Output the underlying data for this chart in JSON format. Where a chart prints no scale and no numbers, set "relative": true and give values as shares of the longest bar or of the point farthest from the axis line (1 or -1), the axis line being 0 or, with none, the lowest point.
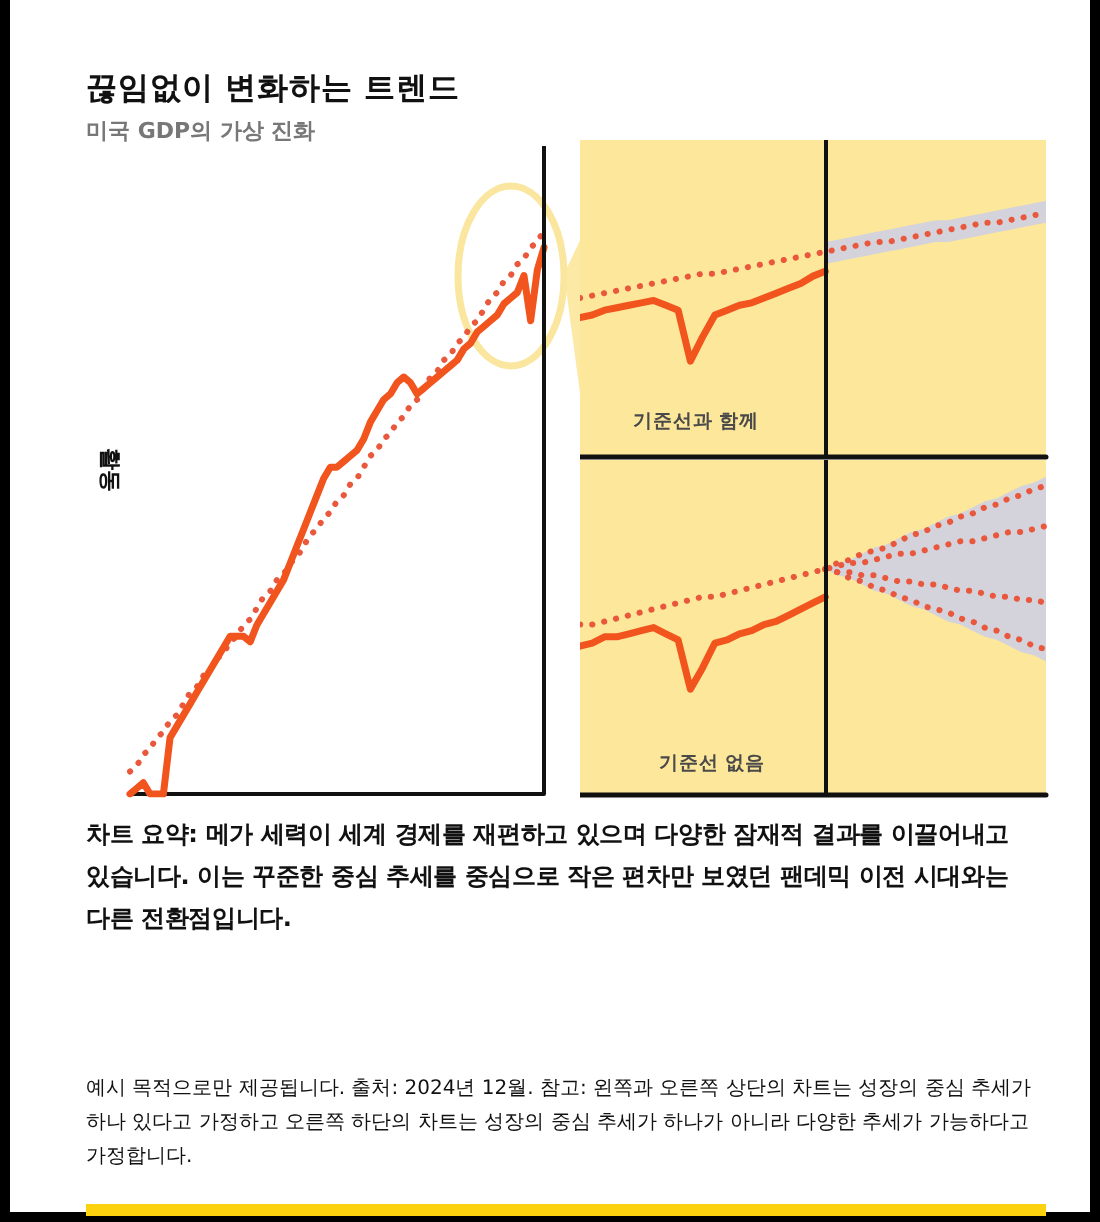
{
  "chart_data": [
    {
      "type": "line",
      "title": "끊임없이 변화하는 트렌드",
      "subtitle": "미국 GDP의 가상 진화",
      "ylabel": "활동",
      "relative": true,
      "annotations": [
        "차트 요약: 메가 세력이 세계 경제를 재편하고 있으며 다양한 잠재적 결과를 이끌어내고 있습니다. 이는 꾸준한 중심 추세를 중심으로 작은 편차만 보였던 팬데믹 이전 시대와는 다른 전환점입니다.",
        "예시 목적으로만 제공됩니다. 출처: 2024년 12월. 참고: 왼쪽과 오른쪽 상단의 차트는 성장의 중심 추세가 하나 있다고 가정하고 오른쪽 하단의 차트는 성장의 중심 추세가 하나가 아니라 다양한 추세가 가능하다고 가정합니다."
      ],
      "categories": [
        null,
        null,
        null,
        null,
        null,
        null,
        null,
        null,
        null,
        null,
        null,
        null,
        null,
        null,
        null,
        null,
        null,
        null,
        null,
        null,
        null,
        null,
        null,
        null,
        null,
        null,
        null,
        null,
        null,
        null,
        null,
        null,
        null,
        null,
        null,
        null,
        null,
        null,
        null,
        null,
        null,
        null,
        null,
        null,
        null,
        null,
        null,
        null,
        null,
        null,
        null,
        null,
        null,
        null,
        null,
        null,
        null,
        null,
        null,
        null,
        null,
        null,
        null
      ],
      "series": [
        {
          "color": "#f2541d",
          "line_style": "solid",
          "values": [
            0,
            0.01,
            0.02,
            0,
            0,
            0,
            0.1,
            0.12,
            0.14,
            0.16,
            0.18,
            0.2,
            0.22,
            0.24,
            0.26,
            0.28,
            0.28,
            0.28,
            0.27,
            0.3,
            0.32,
            0.34,
            0.36,
            0.38,
            0.41,
            0.44,
            0.47,
            0.5,
            0.53,
            0.56,
            0.58,
            0.58,
            0.59,
            0.6,
            0.61,
            0.63,
            0.66,
            0.68,
            0.7,
            0.71,
            0.73,
            0.74,
            0.73,
            0.71,
            0.72,
            0.73,
            0.74,
            0.75,
            0.76,
            0.77,
            0.79,
            0.8,
            0.82,
            0.83,
            0.84,
            0.85,
            0.87,
            0.88,
            0.89,
            0.92,
            0.84,
            0.93,
            0.97
          ]
        },
        {
          "color": "#e9573c",
          "line_style": "dotted",
          "values": [
            0.04,
            0.05,
            0.07,
            0.08,
            0.1,
            0.11,
            0.13,
            0.14,
            0.16,
            0.18,
            0.19,
            0.21,
            0.22,
            0.24,
            0.25,
            0.27,
            0.28,
            0.3,
            0.31,
            0.33,
            0.35,
            0.36,
            0.38,
            0.39,
            0.41,
            0.42,
            0.44,
            0.46,
            0.47,
            0.49,
            0.5,
            0.52,
            0.53,
            0.55,
            0.56,
            0.58,
            0.6,
            0.61,
            0.63,
            0.64,
            0.66,
            0.67,
            0.69,
            0.7,
            0.72,
            0.74,
            0.75,
            0.77,
            0.78,
            0.8,
            0.81,
            0.83,
            0.84,
            0.86,
            0.88,
            0.89,
            0.91,
            0.92,
            0.94,
            0.95,
            0.97,
            0.98,
            1
          ]
        }
      ]
    },
    {
      "type": "line",
      "relative": true,
      "annotations": [
        "기준선과 함께"
      ],
      "categories": [
        null,
        null,
        null,
        null,
        null,
        null,
        null,
        null,
        null,
        null,
        null,
        null,
        null,
        null,
        null,
        null,
        null,
        null,
        null,
        null,
        null,
        null,
        null,
        null,
        null,
        null,
        null,
        null,
        null,
        null,
        null,
        null,
        null,
        null,
        null,
        null,
        null,
        null,
        null
      ],
      "series": [
        {
          "color": "#f2541d",
          "line_style": "solid",
          "values": [
            0.57,
            0.58,
            0.6,
            0.61,
            0.62,
            0.63,
            0.64,
            0.62,
            0.6,
            0.39,
            0.49,
            0.58,
            0.6,
            0.62,
            0.63,
            0.65,
            0.67,
            0.69,
            0.71,
            0.74,
            0.76,
            null,
            null,
            null,
            null,
            null,
            null,
            null,
            null,
            null,
            null,
            null,
            null,
            null,
            null,
            null,
            null,
            null,
            null
          ]
        },
        {
          "color": "#e9573c",
          "line_style": "dotted",
          "values": [
            0.65,
            0.66,
            0.67,
            0.68,
            0.69,
            0.7,
            0.71,
            0.72,
            0.73,
            0.74,
            0.75,
            0.75,
            0.76,
            0.77,
            0.78,
            0.79,
            0.8,
            0.81,
            0.82,
            0.83,
            0.84,
            0.85,
            0.86,
            0.87,
            0.88,
            0.88,
            0.89,
            0.9,
            0.91,
            0.92,
            0.93,
            0.94,
            0.95,
            0.96,
            0.96,
            0.97,
            0.98,
            0.99,
            1
          ],
          "lower": [
            null,
            null,
            null,
            null,
            null,
            null,
            null,
            null,
            null,
            null,
            null,
            null,
            null,
            null,
            null,
            null,
            null,
            null,
            null,
            null,
            0.79,
            0.8,
            0.81,
            0.82,
            0.83,
            0.84,
            0.85,
            0.86,
            0.87,
            0.88,
            0.88,
            0.89,
            0.9,
            0.91,
            0.92,
            0.93,
            0.94,
            0.95,
            0.96
          ],
          "upper": [
            null,
            null,
            null,
            null,
            null,
            null,
            null,
            null,
            null,
            null,
            null,
            null,
            null,
            null,
            null,
            null,
            null,
            null,
            null,
            null,
            0.88,
            0.89,
            0.9,
            0.91,
            0.92,
            0.93,
            0.94,
            0.95,
            0.96,
            0.97,
            0.97,
            0.98,
            0.99,
            1,
            1.01,
            1.02,
            1.03,
            1.04,
            1.05
          ]
        }
      ]
    },
    {
      "type": "line",
      "relative": true,
      "annotations": [
        "기준선 없음"
      ],
      "categories": [
        null,
        null,
        null,
        null,
        null,
        null,
        null,
        null,
        null,
        null,
        null,
        null,
        null,
        null,
        null,
        null,
        null,
        null,
        null,
        null,
        null,
        null,
        null,
        null,
        null,
        null,
        null,
        null,
        null,
        null,
        null,
        null,
        null,
        null,
        null,
        null,
        null,
        null,
        null
      ],
      "series": [
        {
          "color": "#f2541d",
          "line_style": "solid",
          "values": [
            0.48,
            0.49,
            0.51,
            0.51,
            0.52,
            0.53,
            0.54,
            0.52,
            0.5,
            0.34,
            0.41,
            0.49,
            0.5,
            0.52,
            0.53,
            0.55,
            0.56,
            0.58,
            0.6,
            0.62,
            0.64,
            null,
            null,
            null,
            null,
            null,
            null,
            null,
            null,
            null,
            null,
            null,
            null,
            null,
            null,
            null,
            null,
            null,
            null
          ]
        },
        {
          "color": "#e9573c",
          "line_style": "dotted",
          "values": [
            0.55,
            0.55,
            0.56,
            0.57,
            0.58,
            0.59,
            0.6,
            0.61,
            0.62,
            0.63,
            0.64,
            0.64,
            0.65,
            0.66,
            0.67,
            0.68,
            0.69,
            0.7,
            0.71,
            0.72,
            0.73,
            0.74,
            0.75,
            0.75,
            0.76,
            0.77,
            0.78,
            0.78,
            0.79,
            0.8,
            0.81,
            0.82,
            0.82,
            0.83,
            0.84,
            0.85,
            0.85,
            0.86,
            0.87
          ]
        },
        {
          "color": "#e9573c",
          "line_style": "dotted",
          "values": [
            null,
            null,
            null,
            null,
            null,
            null,
            null,
            null,
            null,
            null,
            null,
            null,
            null,
            null,
            null,
            null,
            null,
            null,
            null,
            null,
            0.73,
            0.75,
            0.76,
            0.78,
            0.79,
            0.8,
            0.82,
            0.84,
            0.85,
            0.87,
            0.88,
            0.9,
            0.91,
            0.93,
            0.94,
            0.96,
            0.97,
            0.99,
            1
          ],
          "lower": [
            null,
            null,
            null,
            null,
            null,
            null,
            null,
            null,
            null,
            null,
            null,
            null,
            null,
            null,
            null,
            null,
            null,
            null,
            null,
            null,
            0.73,
            0.71,
            0.7,
            0.68,
            0.66,
            0.65,
            0.63,
            0.61,
            0.6,
            0.58,
            0.56,
            0.55,
            0.53,
            0.51,
            0.5,
            0.48,
            0.46,
            0.45,
            0.43
          ],
          "upper": [
            null,
            null,
            null,
            null,
            null,
            null,
            null,
            null,
            null,
            null,
            null,
            null,
            null,
            null,
            null,
            null,
            null,
            null,
            null,
            null,
            0.73,
            0.75,
            0.76,
            0.78,
            0.8,
            0.81,
            0.83,
            0.85,
            0.86,
            0.88,
            0.9,
            0.91,
            0.93,
            0.95,
            0.96,
            0.98,
            1,
            1.01,
            1.03
          ]
        },
        {
          "color": "#e9573c",
          "line_style": "dotted",
          "values": [
            null,
            null,
            null,
            null,
            null,
            null,
            null,
            null,
            null,
            null,
            null,
            null,
            null,
            null,
            null,
            null,
            null,
            null,
            null,
            null,
            0.73,
            0.72,
            0.72,
            0.71,
            0.71,
            0.7,
            0.69,
            0.69,
            0.68,
            0.68,
            0.67,
            0.66,
            0.66,
            0.65,
            0.64,
            0.64,
            0.63,
            0.63,
            0.62
          ]
        },
        {
          "color": "#e9573c",
          "line_style": "dotted",
          "values": [
            null,
            null,
            null,
            null,
            null,
            null,
            null,
            null,
            null,
            null,
            null,
            null,
            null,
            null,
            null,
            null,
            null,
            null,
            null,
            null,
            0.73,
            0.72,
            0.7,
            0.69,
            0.67,
            0.66,
            0.64,
            0.63,
            0.61,
            0.6,
            0.59,
            0.57,
            0.56,
            0.54,
            0.53,
            0.51,
            0.5,
            0.48,
            0.47
          ]
        }
      ]
    }
  ]
}
